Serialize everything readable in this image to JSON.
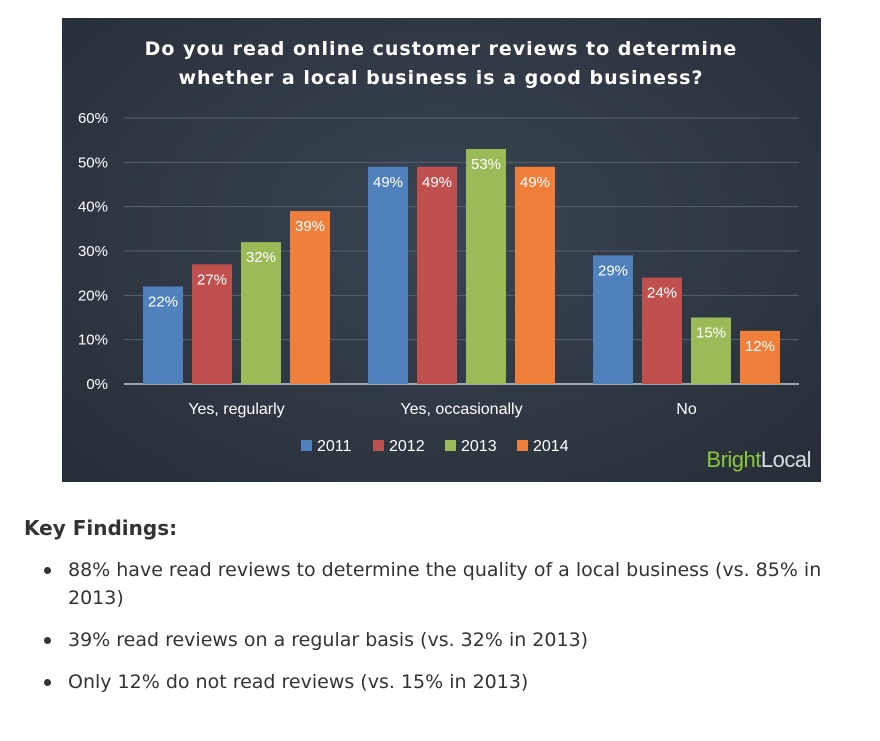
{
  "chart_data": {
    "type": "bar",
    "title": "Do you read online customer reviews to determine whether a local business is a good business?",
    "title_lines": [
      "Do you read online customer reviews to determine",
      "whether a local business is a good business?"
    ],
    "categories": [
      "Yes, regularly",
      "Yes, occasionally",
      "No"
    ],
    "series": [
      {
        "name": "2011",
        "color": "#4f81bd",
        "values": [
          22,
          49,
          29
        ]
      },
      {
        "name": "2012",
        "color": "#c0504d",
        "values": [
          27,
          49,
          24
        ]
      },
      {
        "name": "2013",
        "color": "#9bbb59",
        "values": [
          32,
          53,
          15
        ]
      },
      {
        "name": "2014",
        "color": "#f07f3c",
        "values": [
          39,
          49,
          12
        ]
      }
    ],
    "data_label_suffix": "%",
    "y_ticks": [
      "0%",
      "10%",
      "20%",
      "30%",
      "40%",
      "50%",
      "60%"
    ],
    "ylim": [
      0,
      60
    ],
    "grid": true,
    "legend_position": "bottom-center",
    "xlabel": "",
    "ylabel": ""
  },
  "brand": {
    "part1": "Bright",
    "part2": "Local"
  },
  "findings": {
    "heading": "Key Findings:",
    "items": [
      "88% have read reviews to determine the quality of a local business (vs. 85% in 2013)",
      "39% read reviews on a regular basis (vs. 32% in 2013)",
      "Only 12% do not read reviews (vs. 15% in 2013)"
    ]
  }
}
